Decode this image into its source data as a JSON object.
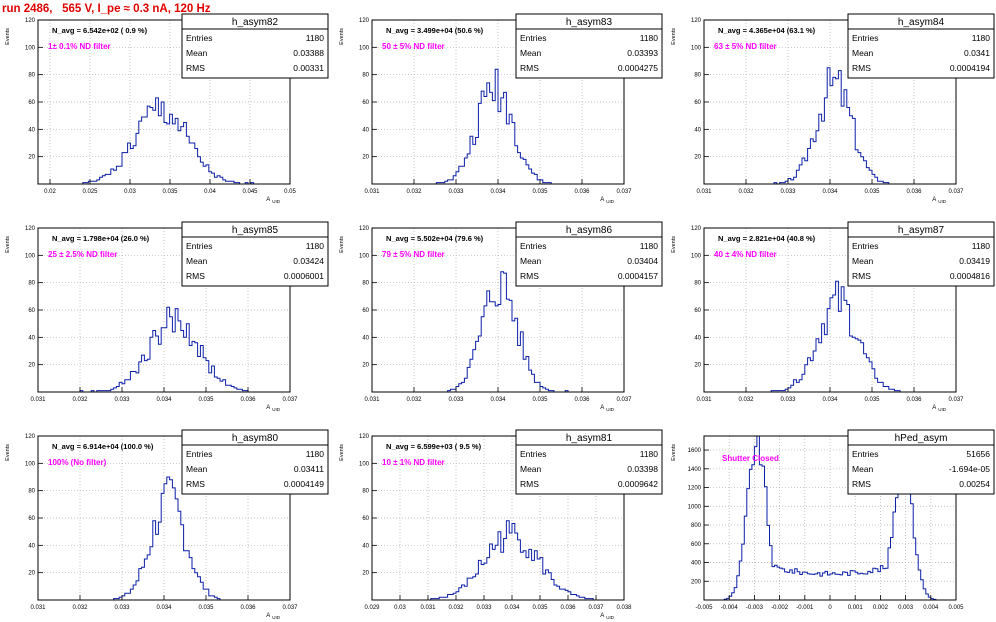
{
  "run_title": "run 2486,   565 V, I_pe ≈ 0.3 nA, 120 Hz",
  "colors": {
    "frame": "#000000",
    "grid": "#b0b0b0",
    "hist": "#0b1fa8",
    "label": "#ff00ff",
    "title": "#e00000"
  },
  "chart_data": [
    {
      "type": "bar",
      "name": "h_asym82",
      "navg": "N_avg = 6.542e+02 ( 0.9 %)",
      "filter": "1± 0.1% ND filter",
      "stats": {
        "Entries": "1180",
        "Mean": "0.03388",
        "RMS": "0.00331"
      },
      "xlabel": "A_UID",
      "ylabel": "Events",
      "xlim": [
        0.0185,
        0.05
      ],
      "ylim": [
        0,
        120
      ],
      "xticks": [
        0.02,
        0.025,
        0.03,
        0.035,
        0.04,
        0.045,
        0.05
      ],
      "xtick_labels": [
        "0.02",
        "0.025",
        "0.03",
        "0.035",
        "0.04",
        "0.045",
        "0.05"
      ],
      "yticks": [
        20,
        40,
        60,
        80,
        100,
        120
      ],
      "shape": {
        "mean": 0.03388,
        "sigma": 0.00331,
        "peak": 54,
        "seed": 1
      }
    },
    {
      "type": "bar",
      "name": "h_asym83",
      "navg": "N_avg = 3.499e+04 (50.6 %)",
      "filter": "50 ± 5% ND filter",
      "stats": {
        "Entries": "1180",
        "Mean": "0.03393",
        "RMS": "0.0004275"
      },
      "xlabel": "A_UID",
      "ylabel": "Events",
      "xlim": [
        0.031,
        0.037
      ],
      "ylim": [
        0,
        120
      ],
      "xticks": [
        0.031,
        0.032,
        0.033,
        0.034,
        0.035,
        0.036,
        0.037
      ],
      "xtick_labels": [
        "0.031",
        "0.032",
        "0.033",
        "0.034",
        "0.035",
        "0.036",
        "0.037"
      ],
      "yticks": [
        20,
        40,
        60,
        80,
        100,
        120
      ],
      "shape": {
        "mean": 0.03393,
        "sigma": 0.0004275,
        "peak": 72,
        "seed": 2
      }
    },
    {
      "type": "bar",
      "name": "h_asym84",
      "navg": "N_avg = 4.365e+04 (63.1 %)",
      "filter": "63 ± 5% ND filter",
      "stats": {
        "Entries": "1180",
        "Mean": "0.0341",
        "RMS": "0.0004194"
      },
      "xlabel": "A_UID",
      "ylabel": "Events",
      "xlim": [
        0.031,
        0.037
      ],
      "ylim": [
        0,
        120
      ],
      "xticks": [
        0.031,
        0.032,
        0.033,
        0.034,
        0.035,
        0.036,
        0.037
      ],
      "xtick_labels": [
        "0.031",
        "0.032",
        "0.033",
        "0.034",
        "0.035",
        "0.036",
        "0.037"
      ],
      "yticks": [
        20,
        40,
        60,
        80,
        100,
        120
      ],
      "shape": {
        "mean": 0.0341,
        "sigma": 0.0004194,
        "peak": 73,
        "seed": 3
      }
    },
    {
      "type": "bar",
      "name": "h_asym85",
      "navg": "N_avg = 1.798e+04 (26.0 %)",
      "filter": "25 ± 2.5% ND filter",
      "stats": {
        "Entries": "1180",
        "Mean": "0.03424",
        "RMS": "0.0006001"
      },
      "xlabel": "A_UID",
      "ylabel": "Events",
      "xlim": [
        0.031,
        0.037
      ],
      "ylim": [
        0,
        120
      ],
      "xticks": [
        0.031,
        0.032,
        0.033,
        0.034,
        0.035,
        0.036,
        0.037
      ],
      "xtick_labels": [
        "0.031",
        "0.032",
        "0.033",
        "0.034",
        "0.035",
        "0.036",
        "0.037"
      ],
      "yticks": [
        20,
        40,
        60,
        80,
        100,
        120
      ],
      "shape": {
        "mean": 0.03424,
        "sigma": 0.0006001,
        "peak": 52,
        "seed": 4
      }
    },
    {
      "type": "bar",
      "name": "h_asym86",
      "navg": "N_avg = 5.502e+04 (79.6 %)",
      "filter": "79 ± 5% ND filter",
      "stats": {
        "Entries": "1180",
        "Mean": "0.03404",
        "RMS": "0.0004157"
      },
      "xlabel": "A_UID",
      "ylabel": "Events",
      "xlim": [
        0.031,
        0.037
      ],
      "ylim": [
        0,
        120
      ],
      "xticks": [
        0.031,
        0.032,
        0.033,
        0.034,
        0.035,
        0.036,
        0.037
      ],
      "xtick_labels": [
        "0.031",
        "0.032",
        "0.033",
        "0.034",
        "0.035",
        "0.036",
        "0.037"
      ],
      "yticks": [
        20,
        40,
        60,
        80,
        100,
        120
      ],
      "shape": {
        "mean": 0.03404,
        "sigma": 0.0004157,
        "peak": 79,
        "seed": 5
      }
    },
    {
      "type": "bar",
      "name": "h_asym87",
      "navg": "N_avg = 2.821e+04 (40.8 %)",
      "filter": "40 ± 4% ND filter",
      "stats": {
        "Entries": "1180",
        "Mean": "0.03419",
        "RMS": "0.0004816"
      },
      "xlabel": "A_UID",
      "ylabel": "Events",
      "xlim": [
        0.031,
        0.037
      ],
      "ylim": [
        0,
        120
      ],
      "xticks": [
        0.031,
        0.032,
        0.033,
        0.034,
        0.035,
        0.036,
        0.037
      ],
      "xtick_labels": [
        "0.031",
        "0.032",
        "0.033",
        "0.034",
        "0.035",
        "0.036",
        "0.037"
      ],
      "yticks": [
        20,
        40,
        60,
        80,
        100,
        120
      ],
      "shape": {
        "mean": 0.03419,
        "sigma": 0.0004816,
        "peak": 66,
        "seed": 6
      }
    },
    {
      "type": "bar",
      "name": "h_asym80",
      "navg": "N_avg = 6.914e+04 (100.0 %)",
      "filter": "100% (No filter)",
      "stats": {
        "Entries": "1180",
        "Mean": "0.03411",
        "RMS": "0.0004149"
      },
      "xlabel": "A_UID",
      "ylabel": "Events",
      "xlim": [
        0.031,
        0.037
      ],
      "ylim": [
        0,
        120
      ],
      "xticks": [
        0.031,
        0.032,
        0.033,
        0.034,
        0.035,
        0.036,
        0.037
      ],
      "xtick_labels": [
        "0.031",
        "0.032",
        "0.033",
        "0.034",
        "0.035",
        "0.036",
        "0.037"
      ],
      "yticks": [
        20,
        40,
        60,
        80,
        100,
        120
      ],
      "shape": {
        "mean": 0.03411,
        "sigma": 0.0004149,
        "peak": 73,
        "seed": 7
      }
    },
    {
      "type": "bar",
      "name": "h_asym81",
      "navg": "N_avg = 6.599e+03 ( 9.5 %)",
      "filter": "10 ± 1% ND filter",
      "stats": {
        "Entries": "1180",
        "Mean": "0.03398",
        "RMS": "0.0009642"
      },
      "xlabel": "A_UID",
      "ylabel": "Events",
      "xlim": [
        0.029,
        0.038
      ],
      "ylim": [
        0,
        120
      ],
      "xticks": [
        0.029,
        0.03,
        0.031,
        0.032,
        0.033,
        0.034,
        0.035,
        0.036,
        0.037,
        0.038
      ],
      "xtick_labels": [
        "0.029",
        "0.03",
        "0.031",
        "0.032",
        "0.033",
        "0.034",
        "0.035",
        "0.036",
        "0.037",
        "0.038"
      ],
      "yticks": [
        20,
        40,
        60,
        80,
        100,
        120
      ],
      "shape": {
        "mean": 0.03398,
        "sigma": 0.0009642,
        "peak": 48,
        "seed": 8
      }
    },
    {
      "type": "bar",
      "name": "hPed_asym",
      "navg": "",
      "filter": "Shutter Closed",
      "stats": {
        "Entries": "51656",
        "Mean": "-1.694e-05",
        "RMS": "0.00254"
      },
      "xlabel": "",
      "ylabel": "Events",
      "xlim": [
        -0.005,
        0.005
      ],
      "ylim": [
        0,
        1750
      ],
      "xticks": [
        -0.005,
        -0.004,
        -0.003,
        -0.002,
        -0.001,
        0,
        0.001,
        0.002,
        0.003,
        0.004,
        0.005
      ],
      "xtick_labels": [
        "-0.005",
        "-0.004",
        "-0.003",
        "-0.002",
        "-0.001",
        "0",
        "0.001",
        "0.002",
        "0.003",
        "0.004",
        "0.005"
      ],
      "yticks": [
        200,
        400,
        600,
        800,
        1000,
        1200,
        1400,
        1600
      ],
      "shape": {
        "bimodal": true,
        "peaks": [
          -0.0029,
          0.0029
        ],
        "heights": [
          1680,
          1450
        ],
        "sigma": 0.00038,
        "floor": 330,
        "seed": 9
      }
    }
  ]
}
